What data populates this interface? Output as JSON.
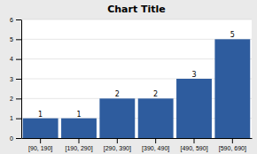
{
  "chart_data": {
    "type": "bar",
    "title": "Chart Title",
    "categories": [
      "[90, 190]",
      "[190, 290]",
      "[290, 390]",
      "[390, 490]",
      "[490, 590]",
      "[590, 690]"
    ],
    "values": [
      1,
      1,
      2,
      2,
      3,
      5
    ],
    "color": "#2E5C9E",
    "ylim": [
      0,
      6
    ],
    "yticks": [
      0,
      1,
      2,
      3,
      4,
      5,
      6
    ],
    "grid": true,
    "data_labels": true
  }
}
